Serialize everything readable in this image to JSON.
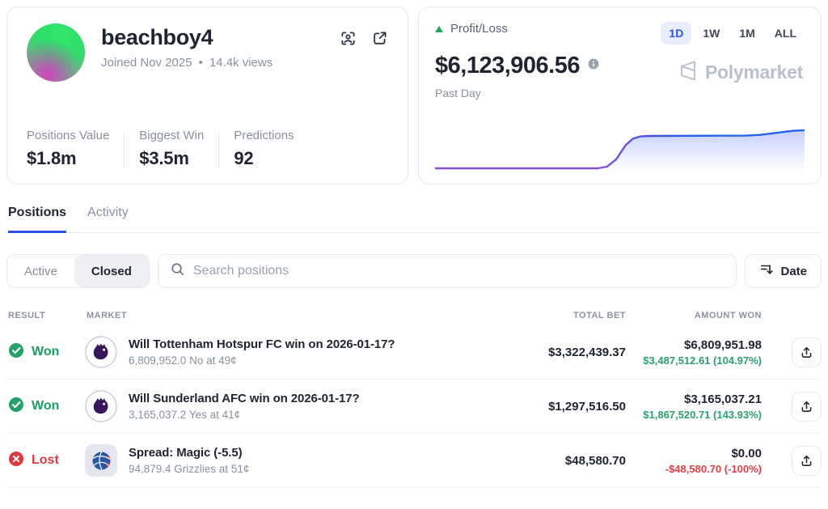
{
  "colors": {
    "accent_blue": "#2d52e8",
    "won_green": "#1d9e61",
    "lost_red": "#de3a42",
    "muted_gray": "#8a919e",
    "chart_purple": "#8a4fd8",
    "chart_blue": "#2563eb"
  },
  "profile": {
    "name": "beachboy4",
    "joined": "Joined Nov 2025",
    "dot": "•",
    "views": "14.4k views",
    "stats": [
      {
        "label": "Positions Value",
        "value": "$1.8m"
      },
      {
        "label": "Biggest Win",
        "value": "$3.5m"
      },
      {
        "label": "Predictions",
        "value": "92"
      }
    ]
  },
  "pnl": {
    "label": "Profit/Loss",
    "amount": "$6,123,906.56",
    "period": "Past Day",
    "watermark": "Polymarket",
    "ranges": [
      {
        "label": "1D",
        "selected": true
      },
      {
        "label": "1W",
        "selected": false
      },
      {
        "label": "1M",
        "selected": false
      },
      {
        "label": "ALL",
        "selected": false
      }
    ]
  },
  "chart_data": {
    "type": "area",
    "title": "Profit/Loss — Past Day",
    "xlabel": "",
    "ylabel": "",
    "grid": false,
    "legend": false,
    "series": [
      {
        "name": "Profit/Loss (Past Day)",
        "points_normalized": [
          [
            0,
            0.11
          ],
          [
            0.44,
            0.11
          ],
          [
            0.465,
            0.14
          ],
          [
            0.49,
            0.28
          ],
          [
            0.515,
            0.55
          ],
          [
            0.535,
            0.68
          ],
          [
            0.555,
            0.725
          ],
          [
            0.58,
            0.735
          ],
          [
            0.84,
            0.74
          ],
          [
            0.88,
            0.755
          ],
          [
            0.93,
            0.8
          ],
          [
            0.97,
            0.835
          ],
          [
            1,
            0.845
          ]
        ],
        "end_value": "$6,123,906.56"
      }
    ]
  },
  "tabs": [
    {
      "label": "Positions",
      "active": true
    },
    {
      "label": "Activity",
      "active": false
    }
  ],
  "toolbar": {
    "segments": [
      {
        "label": "Active",
        "selected": false
      },
      {
        "label": "Closed",
        "selected": true
      }
    ],
    "search_placeholder": "Search positions",
    "sort_button": "Date"
  },
  "table": {
    "headers": {
      "result": "RESULT",
      "market": "MARKET",
      "total_bet": "TOTAL BET",
      "amount_won": "AMOUNT WON"
    },
    "rows": [
      {
        "result": "Won",
        "status": "won",
        "icon": "premier-league-logo",
        "title": "Will Tottenham Hotspur FC win on 2026-01-17?",
        "subtitle": "6,809,952.0 No at 49¢",
        "total_bet": "$3,322,439.37",
        "amount_won": "$6,809,951.98",
        "pnl": "$3,487,512.61 (104.97%)"
      },
      {
        "result": "Won",
        "status": "won",
        "icon": "premier-league-logo",
        "title": "Will Sunderland AFC win on 2026-01-17?",
        "subtitle": "3,165,037.2 Yes at 41¢",
        "total_bet": "$1,297,516.50",
        "amount_won": "$3,165,037.21",
        "pnl": "$1,867,520.71 (143.93%)"
      },
      {
        "result": "Lost",
        "status": "lost",
        "icon": "nba-basketball-logo",
        "title": "Spread: Magic (-5.5)",
        "subtitle": "94,879.4 Grizzlies at 51¢",
        "total_bet": "$48,580.70",
        "amount_won": "$0.00",
        "pnl": "-$48,580.70 (-100%)"
      }
    ]
  }
}
